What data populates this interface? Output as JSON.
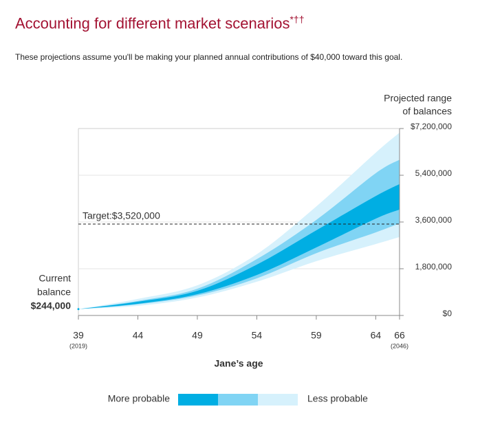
{
  "chart_data": {
    "type": "fan",
    "title": "Accounting for different market scenarios",
    "title_mark": "*††",
    "subtitle": "These projections assume you'll be making your planned annual contributions of $40,000 toward this goal.",
    "y_label": [
      "Projected range",
      "of balances"
    ],
    "x_label": "Jane’s age",
    "xlim": [
      39,
      66
    ],
    "xticks": [
      39,
      44,
      49,
      54,
      59,
      64,
      66
    ],
    "xtick_notes": [
      {
        "value": 39,
        "label": "(2019)"
      },
      {
        "value": 66,
        "label": "(2046)"
      }
    ],
    "ylim": [
      0,
      7200000
    ],
    "yticks": [
      {
        "value": 0,
        "label": "$0"
      },
      {
        "value": 1800000,
        "label": "1,800,000"
      },
      {
        "value": 3600000,
        "label": "3,600,000"
      },
      {
        "value": 5400000,
        "label": "5,400,000"
      },
      {
        "value": 7200000,
        "label": "$7,200,000"
      }
    ],
    "grid": true,
    "x": [
      39,
      44,
      49,
      54,
      59,
      64,
      66
    ],
    "bands": [
      {
        "color": "#d6f1fc",
        "high": [
          244000,
          640000,
          1160000,
          2360000,
          4200000,
          6270000,
          7040000
        ],
        "low": [
          244000,
          370000,
          690000,
          1300000,
          2090000,
          2750000,
          3020000
        ]
      },
      {
        "color": "#80d4f4",
        "high": [
          244000,
          560000,
          1030000,
          2170000,
          3680000,
          5480000,
          6000000
        ],
        "low": [
          244000,
          430000,
          770000,
          1430000,
          2400000,
          3200000,
          3550000
        ]
      },
      {
        "color": "#00aee3",
        "high": [
          244000,
          530000,
          950000,
          1960000,
          3280000,
          4600000,
          5060000
        ],
        "low": [
          244000,
          450000,
          820000,
          1560000,
          2620000,
          3730000,
          4080000
        ]
      }
    ],
    "target": {
      "value": 3520000,
      "label": "Target:$3,520,000"
    },
    "current_label": [
      "Current",
      "balance"
    ],
    "current_value": {
      "value": 244000,
      "label": "$244,000"
    },
    "legend": {
      "left": "More probable",
      "right": "Less probable"
    }
  }
}
